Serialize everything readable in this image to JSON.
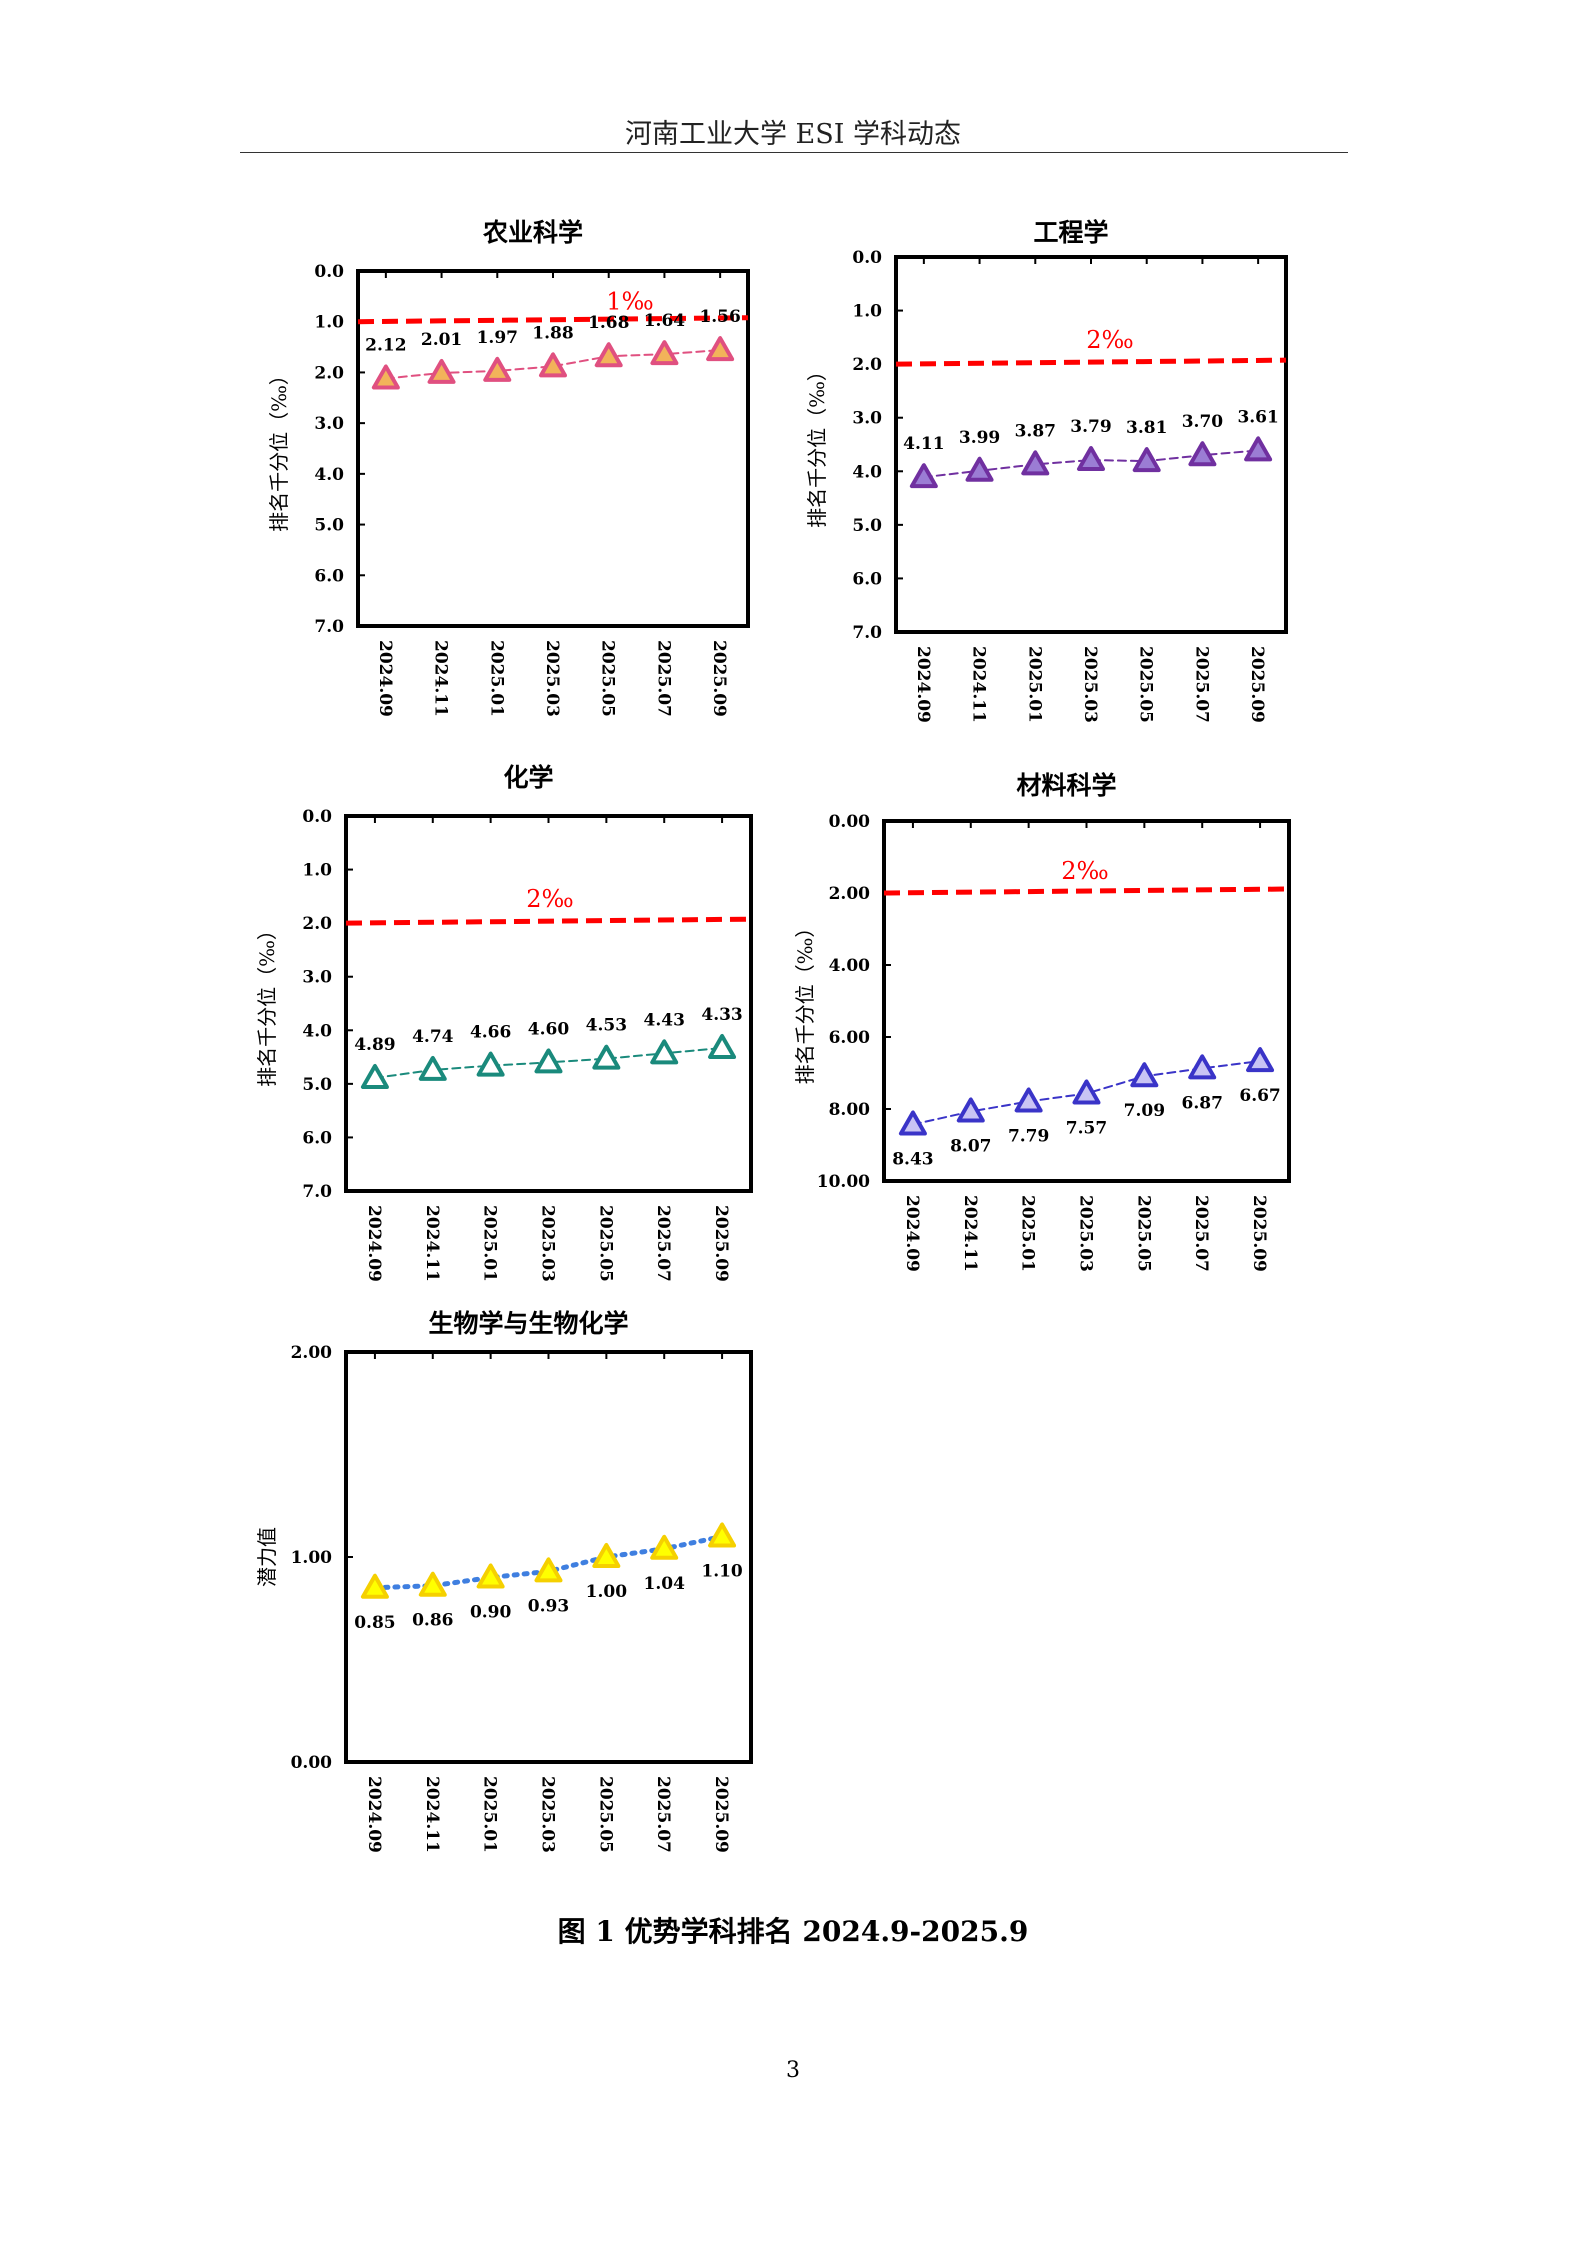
{
  "header": {
    "title": "河南工业大学 ESI 学科动态"
  },
  "caption": "图 1  优势学科排名 2024.9-2025.9",
  "page_number": "3",
  "chart_data": [
    {
      "type": "line",
      "title": "农业科学",
      "ylabel": "排名千分位（‰）",
      "xlabel": "",
      "categories": [
        "2024.09",
        "2024.11",
        "2025.01",
        "2025.03",
        "2025.05",
        "2025.07",
        "2025.09"
      ],
      "ylim": [
        0,
        7
      ],
      "y_inverted": true,
      "y_ticks": [
        "0.0",
        "1.0",
        "2.0",
        "3.0",
        "4.0",
        "5.0",
        "6.0",
        "7.0"
      ],
      "series": [
        {
          "values": [
            2.12,
            2.01,
            1.97,
            1.88,
            1.68,
            1.64,
            1.56
          ],
          "labels": [
            "2.12",
            "2.01",
            "1.97",
            "1.88",
            "1.68",
            "1.64",
            "1.56"
          ],
          "color": "#e05080",
          "fill": "#f2b35a",
          "line_style": "dashed"
        }
      ],
      "threshold": {
        "label": "1‰",
        "value": 1.0,
        "color": "#ff0000"
      },
      "grid": false,
      "legend": "none"
    },
    {
      "type": "line",
      "title": "工程学",
      "ylabel": "排名千分位（‰）",
      "xlabel": "",
      "categories": [
        "2024.09",
        "2024.11",
        "2025.01",
        "2025.03",
        "2025.05",
        "2025.07",
        "2025.09"
      ],
      "ylim": [
        0,
        7
      ],
      "y_inverted": true,
      "y_ticks": [
        "0.0",
        "1.0",
        "2.0",
        "3.0",
        "4.0",
        "5.0",
        "6.0",
        "7.0"
      ],
      "series": [
        {
          "values": [
            4.11,
            3.99,
            3.87,
            3.79,
            3.81,
            3.7,
            3.61
          ],
          "labels": [
            "4.11",
            "3.99",
            "3.87",
            "3.79",
            "3.81",
            "3.70",
            "3.61"
          ],
          "color": "#7030a0",
          "fill": "#9b7dd4",
          "line_style": "dashed"
        }
      ],
      "threshold": {
        "label": "2‰",
        "value": 2.0,
        "color": "#ff0000"
      },
      "grid": false,
      "legend": "none"
    },
    {
      "type": "line",
      "title": "化学",
      "ylabel": "排名千分位（‰）",
      "xlabel": "",
      "categories": [
        "2024.09",
        "2024.11",
        "2025.01",
        "2025.03",
        "2025.05",
        "2025.07",
        "2025.09"
      ],
      "ylim": [
        0,
        7
      ],
      "y_inverted": true,
      "y_ticks": [
        "0.0",
        "1.0",
        "2.0",
        "3.0",
        "4.0",
        "5.0",
        "6.0",
        "7.0"
      ],
      "series": [
        {
          "values": [
            4.89,
            4.74,
            4.66,
            4.6,
            4.53,
            4.43,
            4.33
          ],
          "labels": [
            "4.89",
            "4.74",
            "4.66",
            "4.60",
            "4.53",
            "4.43",
            "4.33"
          ],
          "color": "#1a8a7c",
          "fill": "#ffffff",
          "line_style": "dashed"
        }
      ],
      "threshold": {
        "label": "2‰",
        "value": 2.0,
        "color": "#ff0000"
      },
      "grid": false,
      "legend": "none"
    },
    {
      "type": "line",
      "title": "材料科学",
      "ylabel": "排名千分位（‰）",
      "xlabel": "",
      "categories": [
        "2024.09",
        "2024.11",
        "2025.01",
        "2025.03",
        "2025.05",
        "2025.07",
        "2025.09"
      ],
      "ylim": [
        0,
        10
      ],
      "y_inverted": true,
      "y_ticks": [
        "0.00",
        "2.00",
        "4.00",
        "6.00",
        "8.00",
        "10.00"
      ],
      "series": [
        {
          "values": [
            8.43,
            8.07,
            7.79,
            7.57,
            7.09,
            6.87,
            6.67
          ],
          "labels": [
            "8.43",
            "8.07",
            "7.79",
            "7.57",
            "7.09",
            "6.87",
            "6.67"
          ],
          "color": "#3a34c8",
          "fill": "#c9c4f4",
          "line_style": "dashed"
        }
      ],
      "threshold": {
        "label": "2‰",
        "value": 2.0,
        "color": "#ff0000"
      },
      "grid": false,
      "legend": "none"
    },
    {
      "type": "line",
      "title": "生物学与生物化学",
      "ylabel": "潜力值",
      "xlabel": "",
      "categories": [
        "2024.09",
        "2024.11",
        "2025.01",
        "2025.03",
        "2025.05",
        "2025.07",
        "2025.09"
      ],
      "ylim": [
        0,
        2
      ],
      "y_inverted": false,
      "y_ticks": [
        "0.00",
        "1.00",
        "2.00"
      ],
      "series": [
        {
          "values": [
            0.85,
            0.86,
            0.9,
            0.93,
            1.0,
            1.04,
            1.1
          ],
          "labels": [
            "0.85",
            "0.86",
            "0.90",
            "0.93",
            "1.00",
            "1.04",
            "1.10"
          ],
          "color": "#f5d000",
          "fill": "#ffff00",
          "line_color": "#3f7fe0",
          "line_style": "dotted"
        }
      ],
      "threshold": null,
      "grid": false,
      "legend": "none"
    }
  ]
}
